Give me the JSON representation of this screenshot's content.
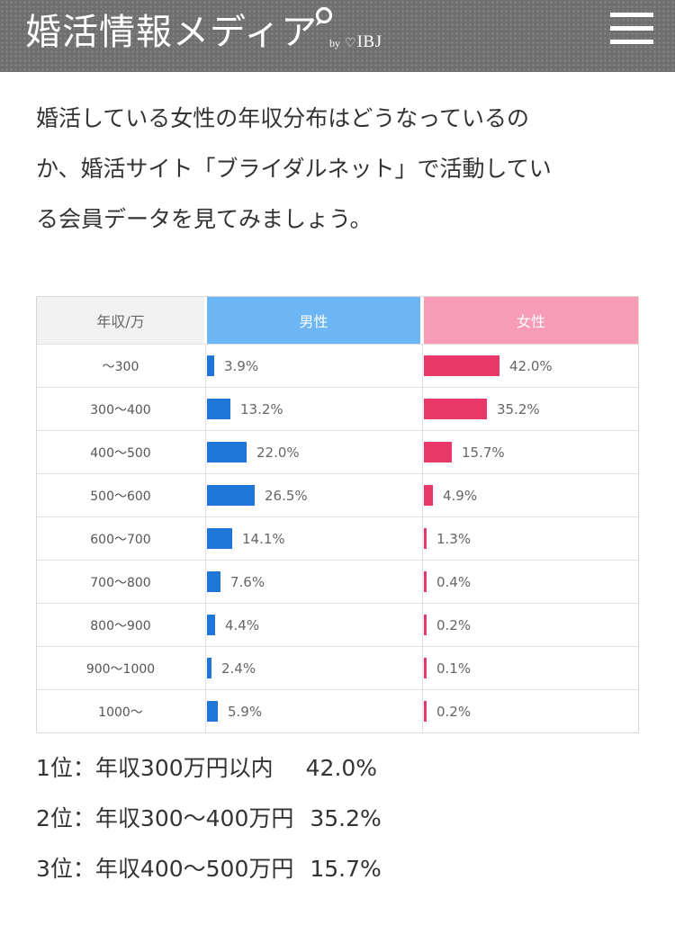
{
  "header": {
    "title": "婚活情報メディア",
    "by": "by",
    "heart": "♡",
    "brand": "IBJ",
    "bg_color": "#6f6f6f"
  },
  "intro": {
    "lines": [
      "婚活している女性の年収分布はどうなっているの",
      "か、婚活サイト「ブライダルネット」で活動してい",
      "る会員データを見てみましょう。"
    ]
  },
  "chart_data": {
    "type": "bar",
    "columns": {
      "label": "年収/万",
      "male": "男性",
      "female": "女性"
    },
    "categories": [
      "～300",
      "300～400",
      "400～500",
      "500～600",
      "600～700",
      "700～800",
      "800～900",
      "900～1000",
      "1000～"
    ],
    "series": [
      {
        "name": "男性",
        "color": "#1e77d8",
        "values": [
          3.9,
          13.2,
          22.0,
          26.5,
          14.1,
          7.6,
          4.4,
          2.4,
          5.9
        ],
        "labels": [
          "3.9%",
          "13.2%",
          "22.0%",
          "26.5%",
          "14.1%",
          "7.6%",
          "4.4%",
          "2.4%",
          "5.9%"
        ]
      },
      {
        "name": "女性",
        "color": "#e8386a",
        "values": [
          42.0,
          35.2,
          15.7,
          4.9,
          1.3,
          0.4,
          0.2,
          0.1,
          0.2
        ],
        "labels": [
          "42.0%",
          "35.2%",
          "15.7%",
          "4.9%",
          "1.3%",
          "0.4%",
          "0.2%",
          "0.1%",
          "0.2%"
        ]
      }
    ],
    "header_colors": {
      "label": "#f2f2f2",
      "male": "#6db6f5",
      "female": "#f79bb7"
    }
  },
  "ranking": [
    {
      "rank": "1位",
      "label": "年収300万円以内",
      "value": "42.0%"
    },
    {
      "rank": "2位",
      "label": "年収300～400万円",
      "value": "35.2%"
    },
    {
      "rank": "3位",
      "label": "年収400～500万円",
      "value": "15.7%"
    }
  ]
}
